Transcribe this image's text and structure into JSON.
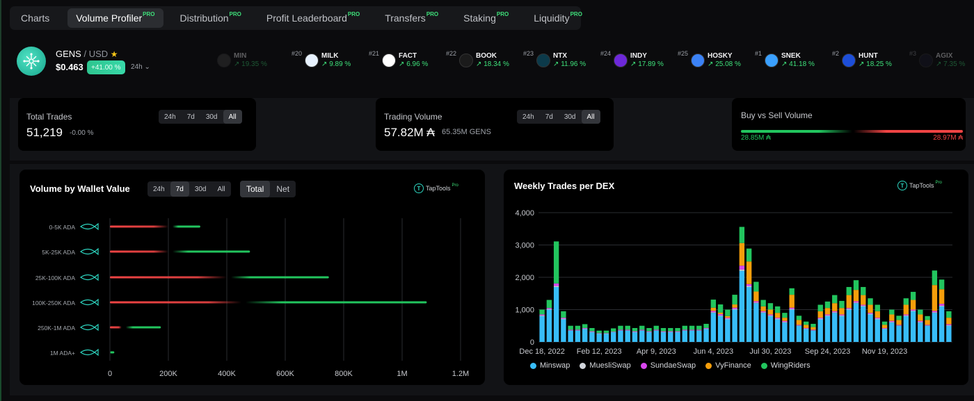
{
  "tabs": [
    {
      "label": "Charts",
      "pro": ""
    },
    {
      "label": "Volume Profiler",
      "pro": "PRO",
      "active": true
    },
    {
      "label": "Distribution",
      "pro": "PRO"
    },
    {
      "label": "Profit Leaderboard",
      "pro": "PRO"
    },
    {
      "label": "Transfers",
      "pro": "PRO"
    },
    {
      "label": "Staking",
      "pro": "PRO"
    },
    {
      "label": "Liquidity",
      "pro": "PRO"
    }
  ],
  "token": {
    "symbol": "GENS",
    "quote": "/ USD",
    "star": "★",
    "price": "$0.463",
    "change": "+41.00 %",
    "timeframe": "24h ⌄"
  },
  "ticker": [
    {
      "rank": "",
      "name": "MIN",
      "change": "↗ 19.35 %",
      "color": "#444",
      "dim": true
    },
    {
      "rank": "#20",
      "name": "MILK",
      "change": "↗ 9.89 %",
      "color": "#e8f2ff"
    },
    {
      "rank": "#21",
      "name": "FACT",
      "change": "↗ 6.96 %",
      "color": "#ffffff"
    },
    {
      "rank": "#22",
      "name": "BOOK",
      "change": "↗ 18.34 %",
      "color": "#1b1b1b"
    },
    {
      "rank": "#23",
      "name": "NTX",
      "change": "↗ 11.96 %",
      "color": "#0c3a4a"
    },
    {
      "rank": "#24",
      "name": "INDY",
      "change": "↗ 17.89 %",
      "color": "#6d28d9"
    },
    {
      "rank": "#25",
      "name": "HOSKY",
      "change": "↗ 25.08 %",
      "color": "#3b82f6"
    },
    {
      "rank": "#1",
      "name": "SNEK",
      "change": "↗ 41.18 %",
      "color": "#3aa0ff"
    },
    {
      "rank": "#2",
      "name": "HUNT",
      "change": "↗ 18.25 %",
      "color": "#1d4ed8"
    },
    {
      "rank": "#3",
      "name": "AGIX",
      "change": "↗ 7.35 %",
      "color": "#1a1a2e",
      "dim": true
    }
  ],
  "total_trades": {
    "label": "Total Trades",
    "value": "51,219",
    "change": "-0.00 %",
    "ranges": [
      "24h",
      "7d",
      "30d",
      "All"
    ],
    "active": "All"
  },
  "trading_volume": {
    "label": "Trading Volume",
    "value": "57.82M ₳",
    "sub": "65.35M GENS",
    "ranges": [
      "24h",
      "7d",
      "30d",
      "All"
    ],
    "active": "All"
  },
  "buy_sell": {
    "label": "Buy vs Sell Volume",
    "buy": "28.85M ₳",
    "sell": "28.97M ₳",
    "buy_color": "#22c55e",
    "sell_color": "#ef4444"
  },
  "wallet_panel": {
    "title": "Volume by Wallet Value",
    "ranges": [
      "24h",
      "7d",
      "30d",
      "All"
    ],
    "active_range": "7d",
    "modes": [
      "Total",
      "Net"
    ],
    "active_mode": "Total",
    "brand": "TapTools",
    "brand_pro": "Pro"
  },
  "dex_panel": {
    "title": "Weekly Trades per DEX",
    "brand": "TapTools",
    "brand_pro": "Pro"
  },
  "chart_data": [
    {
      "type": "bar",
      "orientation": "horizontal",
      "categories": [
        "0-5K ADA",
        "5K-25K ADA",
        "25K-100K ADA",
        "100K-250K ADA",
        "250K-1M ADA",
        "1M ADA+"
      ],
      "series": [
        {
          "name": "",
          "color": "#ef4444",
          "values": [
            200000,
            200000,
            400000,
            450000,
            40000,
            0
          ]
        },
        {
          "name": "",
          "color": "#22c55e",
          "values": [
            95000,
            265000,
            335000,
            620000,
            120000,
            15000
          ]
        }
      ],
      "x_ticks": [
        "0",
        "200K",
        "400K",
        "600K",
        "800K",
        "1M",
        "1.2M"
      ],
      "xlim": [
        0,
        1200000
      ]
    },
    {
      "type": "bar",
      "stacked": true,
      "weeks": 58,
      "x_ticks": [
        "Dec 18, 2022",
        "Feb 12, 2023",
        "Apr 9, 2023",
        "Jun 4, 2023",
        "Jul 30, 2023",
        "Sep 24, 2023",
        "Nov 19, 2023"
      ],
      "y_ticks": [
        "0",
        "1,000",
        "2,000",
        "3,000",
        "4,000"
      ],
      "ylim": [
        0,
        4000
      ],
      "series": [
        {
          "name": "Minswap",
          "color": "#38bdf8",
          "values": [
            800,
            1000,
            1700,
            700,
            350,
            350,
            400,
            300,
            250,
            250,
            300,
            350,
            350,
            300,
            350,
            300,
            350,
            300,
            300,
            300,
            350,
            350,
            350,
            400,
            900,
            800,
            700,
            1000,
            2200,
            1700,
            1200,
            900,
            800,
            700,
            600,
            1000,
            500,
            400,
            350,
            700,
            800,
            900,
            800,
            1000,
            1200,
            1100,
            850,
            700,
            400,
            600,
            500,
            800,
            950,
            600,
            500,
            900,
            1100,
            500
          ]
        },
        {
          "name": "MuesliSwap",
          "color": "#d1d5db",
          "values": [
            20,
            20,
            30,
            20,
            10,
            10,
            10,
            10,
            10,
            10,
            10,
            10,
            10,
            10,
            10,
            10,
            10,
            10,
            10,
            10,
            10,
            10,
            10,
            10,
            20,
            20,
            20,
            20,
            40,
            30,
            20,
            20,
            20,
            20,
            20,
            20,
            10,
            10,
            10,
            20,
            20,
            20,
            20,
            20,
            20,
            20,
            20,
            20,
            10,
            20,
            10,
            20,
            20,
            20,
            10,
            20,
            20,
            20
          ]
        },
        {
          "name": "SundaeSwap",
          "color": "#d946ef",
          "values": [
            30,
            30,
            80,
            30,
            20,
            20,
            20,
            20,
            10,
            10,
            10,
            20,
            20,
            20,
            20,
            20,
            20,
            20,
            20,
            20,
            20,
            20,
            20,
            20,
            40,
            40,
            30,
            40,
            120,
            60,
            40,
            30,
            30,
            30,
            30,
            40,
            20,
            20,
            20,
            30,
            30,
            30,
            30,
            30,
            40,
            30,
            30,
            30,
            20,
            30,
            20,
            30,
            30,
            30,
            20,
            40,
            60,
            30
          ]
        },
        {
          "name": "VyFinance",
          "color": "#f59e0b",
          "values": [
            0,
            0,
            0,
            0,
            0,
            0,
            0,
            0,
            0,
            0,
            0,
            0,
            0,
            0,
            0,
            0,
            0,
            0,
            0,
            0,
            0,
            0,
            0,
            0,
            100,
            50,
            50,
            100,
            700,
            700,
            300,
            150,
            150,
            150,
            100,
            400,
            150,
            100,
            80,
            200,
            200,
            250,
            200,
            400,
            350,
            300,
            250,
            200,
            100,
            200,
            150,
            300,
            300,
            200,
            150,
            800,
            450,
            200
          ]
        },
        {
          "name": "WingRiders",
          "color": "#22c55e",
          "values": [
            150,
            250,
            1300,
            200,
            120,
            120,
            120,
            100,
            80,
            80,
            100,
            120,
            120,
            100,
            120,
            100,
            120,
            100,
            100,
            100,
            120,
            120,
            120,
            130,
            250,
            250,
            200,
            300,
            500,
            400,
            300,
            200,
            200,
            200,
            150,
            200,
            130,
            100,
            100,
            200,
            200,
            250,
            220,
            250,
            300,
            250,
            200,
            200,
            100,
            150,
            130,
            200,
            250,
            150,
            120,
            450,
            300,
            200
          ]
        }
      ]
    }
  ]
}
